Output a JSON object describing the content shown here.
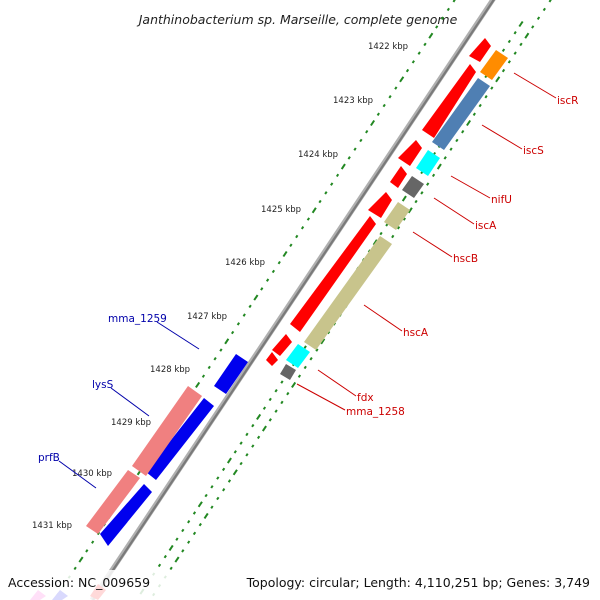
{
  "title": "Janthinobacterium sp. Marseille, complete genome",
  "footer": {
    "accession": "Accession: NC_009659",
    "summary": "Topology: circular; Length: 4,110,251 bp; Genes: 3,749"
  },
  "ticks": [
    {
      "label": "1422 kbp"
    },
    {
      "label": "1423 kbp"
    },
    {
      "label": "1424 kbp"
    },
    {
      "label": "1425 kbp"
    },
    {
      "label": "1426 kbp"
    },
    {
      "label": "1427 kbp"
    },
    {
      "label": "1428 kbp"
    },
    {
      "label": "1429 kbp"
    },
    {
      "label": "1430 kbp"
    },
    {
      "label": "1431 kbp"
    }
  ],
  "gene_labels_right": [
    {
      "name": "iscR"
    },
    {
      "name": "iscS"
    },
    {
      "name": "nifU"
    },
    {
      "name": "iscA"
    },
    {
      "name": "hscB"
    },
    {
      "name": "hscA"
    },
    {
      "name": "fdx"
    },
    {
      "name": "mma_1258"
    }
  ],
  "gene_labels_left": [
    {
      "name": "mma_1259"
    },
    {
      "name": "lysS"
    },
    {
      "name": "prfB"
    }
  ],
  "colors": {
    "backbone": "#888888",
    "ticks": "#228822",
    "cds_red": "#ff0000",
    "cds_blue": "#0000ee",
    "isc_orange": "#ff8c00",
    "isc_steel": "#4f7fb3",
    "isc_cyan": "#00ffff",
    "isc_grey": "#666666",
    "hsc_khaki": "#c8c48c",
    "trna_pink": "#f08080",
    "label_red": "#cc0000",
    "label_blue": "#0000aa"
  }
}
